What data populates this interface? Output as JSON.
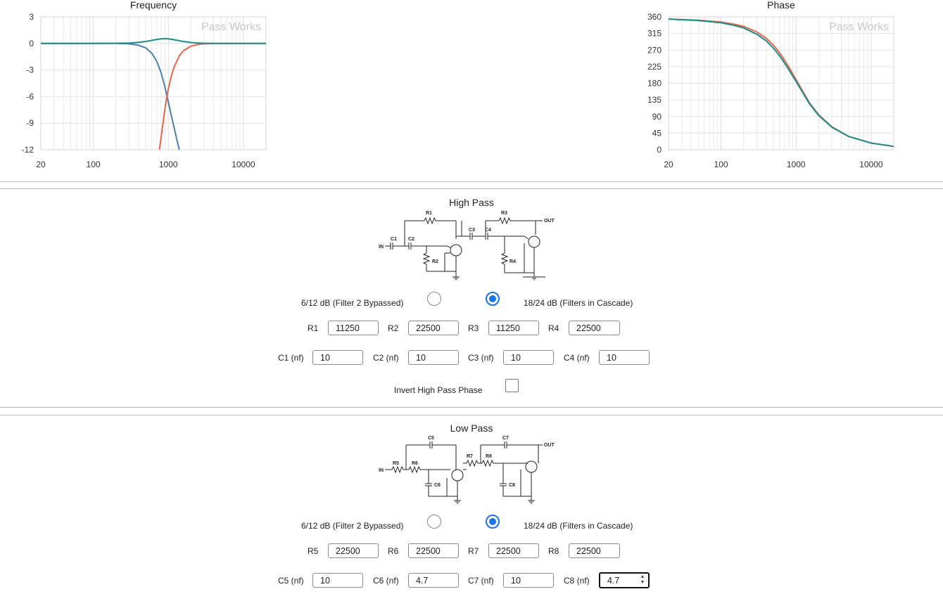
{
  "charts": {
    "frequency": {
      "title": "Frequency",
      "watermark": "Pass Works",
      "y_ticks": [
        "3",
        "0",
        "-3",
        "-6",
        "-9",
        "-12"
      ],
      "x_ticks": [
        "20",
        "100",
        "1000",
        "10000"
      ]
    },
    "phase": {
      "title": "Phase",
      "watermark": "Pass Works",
      "y_ticks": [
        "360",
        "315",
        "270",
        "225",
        "180",
        "135",
        "90",
        "45",
        "0"
      ],
      "x_ticks": [
        "20",
        "100",
        "1000",
        "10000"
      ]
    }
  },
  "chart_data": [
    {
      "type": "line",
      "title": "Frequency",
      "x_scale": "log",
      "xlim": [
        20,
        20000
      ],
      "ylim": [
        -12,
        3
      ],
      "grid": true,
      "series": [
        {
          "color": "#4a7fb0",
          "x": [
            20,
            100,
            200,
            300,
            400,
            500,
            600,
            700,
            800,
            900,
            1000,
            1100,
            1200,
            1300,
            1400
          ],
          "y": [
            0,
            0,
            0,
            -0.05,
            -0.2,
            -0.5,
            -1.1,
            -2.0,
            -3.3,
            -4.9,
            -6.6,
            -8.2,
            -9.6,
            -10.9,
            -12
          ]
        },
        {
          "color": "#e8654a",
          "x": [
            760,
            800,
            850,
            900,
            1000,
            1100,
            1200,
            1400,
            1600,
            2000,
            2500,
            3000,
            4000,
            6000,
            20000
          ],
          "y": [
            -12,
            -10.6,
            -8.9,
            -7.4,
            -5.1,
            -3.6,
            -2.6,
            -1.4,
            -0.8,
            -0.3,
            -0.1,
            -0.05,
            0,
            0,
            0
          ]
        },
        {
          "color": "#1f8b8b",
          "x": [
            20,
            100,
            200,
            300,
            400,
            500,
            600,
            700,
            800,
            900,
            1000,
            1200,
            1500,
            2000,
            2500,
            3000,
            4000,
            20000
          ],
          "y": [
            0,
            0,
            0.02,
            0.05,
            0.12,
            0.22,
            0.34,
            0.45,
            0.52,
            0.54,
            0.52,
            0.42,
            0.25,
            0.1,
            0.04,
            0.02,
            0,
            0
          ]
        }
      ]
    },
    {
      "type": "line",
      "title": "Phase",
      "x_scale": "log",
      "xlim": [
        20,
        20000
      ],
      "ylim": [
        0,
        360
      ],
      "grid": true,
      "series": [
        {
          "color": "#e8654a",
          "x": [
            20,
            50,
            100,
            150,
            200,
            300,
            400,
            500,
            600,
            700,
            800,
            1000,
            1200,
            1500,
            2000,
            3000,
            5000,
            10000,
            20000
          ],
          "y": [
            354,
            351,
            346,
            340,
            334,
            319,
            302,
            283,
            263,
            243,
            224,
            190,
            162,
            128,
            95,
            62,
            36,
            18,
            9
          ]
        },
        {
          "color": "#1f8b8b",
          "x": [
            20,
            50,
            100,
            150,
            200,
            300,
            400,
            500,
            600,
            700,
            800,
            1000,
            1200,
            1500,
            2000,
            3000,
            5000,
            10000,
            20000
          ],
          "y": [
            354,
            350,
            344,
            337,
            330,
            313,
            295,
            275,
            255,
            235,
            217,
            185,
            158,
            125,
            93,
            61,
            36,
            18,
            9
          ]
        }
      ]
    }
  ],
  "high_pass": {
    "title": "High Pass",
    "schematic": {
      "in": "IN",
      "out": "OUT",
      "r1": "R1",
      "r2": "R2",
      "r3": "R3",
      "r4": "R4",
      "c1": "C1",
      "c2": "C2",
      "c3": "C3",
      "c4": "C4"
    },
    "mode_bypassed_label": "6/12 dB (Filter 2 Bypassed)",
    "mode_cascade_label": "18/24 dB (Filters in Cascade)",
    "selected_mode": "cascade",
    "resistors": [
      {
        "label": "R1",
        "value": "11250"
      },
      {
        "label": "R2",
        "value": "22500"
      },
      {
        "label": "R3",
        "value": "11250"
      },
      {
        "label": "R4",
        "value": "22500"
      }
    ],
    "capacitors": [
      {
        "label": "C1 (nf)",
        "value": "10"
      },
      {
        "label": "C2 (nf)",
        "value": "10"
      },
      {
        "label": "C3 (nf)",
        "value": "10"
      },
      {
        "label": "C4 (nf)",
        "value": "10"
      }
    ],
    "invert_label": "Invert High Pass Phase",
    "invert_checked": false
  },
  "low_pass": {
    "title": "Low Pass",
    "schematic": {
      "in": "IN",
      "out": "OUT",
      "r5": "R5",
      "r6": "R6",
      "r7": "R7",
      "r8": "R8",
      "c5": "C5",
      "c6": "C6",
      "c7": "C7",
      "c8": "C8"
    },
    "mode_bypassed_label": "6/12 dB (Filter 2 Bypassed)",
    "mode_cascade_label": "18/24 dB (Filters in Cascade)",
    "selected_mode": "cascade",
    "resistors": [
      {
        "label": "R5",
        "value": "22500"
      },
      {
        "label": "R6",
        "value": "22500"
      },
      {
        "label": "R7",
        "value": "22500"
      },
      {
        "label": "R8",
        "value": "22500"
      }
    ],
    "capacitors": [
      {
        "label": "C5 (nf)",
        "value": "10"
      },
      {
        "label": "C6 (nf)",
        "value": "4.7"
      },
      {
        "label": "C7 (nf)",
        "value": "10"
      },
      {
        "label": "C8 (nf)",
        "value": "4.7"
      }
    ]
  }
}
